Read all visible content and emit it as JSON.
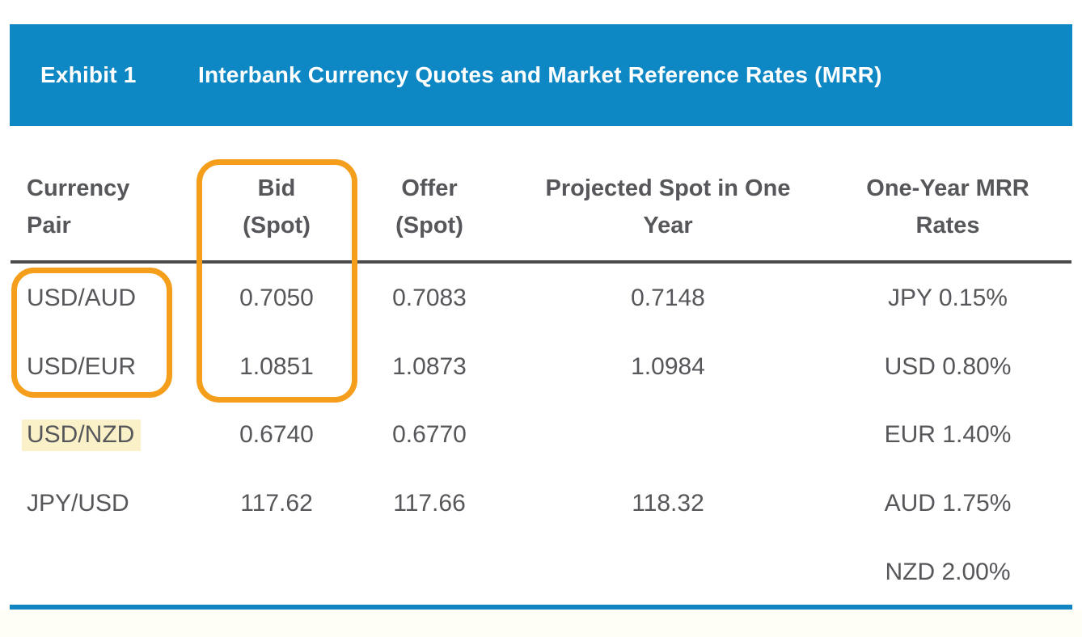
{
  "exhibit": {
    "label": "Exhibit 1",
    "title": "Interbank Currency Quotes and Market Reference Rates (MRR)"
  },
  "table": {
    "columns": [
      {
        "line1": "Currency",
        "line2": "Pair"
      },
      {
        "line1": "Bid",
        "line2": "(Spot)"
      },
      {
        "line1": "Offer",
        "line2": "(Spot)"
      },
      {
        "line1": "Projected Spot in One",
        "line2": "Year"
      },
      {
        "line1": "One-Year MRR",
        "line2": "Rates"
      }
    ],
    "rows": [
      {
        "pair": "USD/AUD",
        "bid": "0.7050",
        "offer": "0.7083",
        "projected": "0.7148",
        "mrr": "JPY 0.15%",
        "highlighted": false
      },
      {
        "pair": "USD/EUR",
        "bid": "1.0851",
        "offer": "1.0873",
        "projected": "1.0984",
        "mrr": "USD 0.80%",
        "highlighted": false
      },
      {
        "pair": "USD/NZD",
        "bid": "0.6740",
        "offer": "0.6770",
        "projected": "",
        "mrr": "EUR 1.40%",
        "highlighted": true
      },
      {
        "pair": "JPY/USD",
        "bid": "117.62",
        "offer": "117.66",
        "projected": "118.32",
        "mrr": "AUD 1.75%",
        "highlighted": false
      },
      {
        "pair": "",
        "bid": "",
        "offer": "",
        "projected": "",
        "mrr": "NZD 2.00%",
        "highlighted": false
      }
    ]
  },
  "annotations": {
    "bid_column_box": "orange rounded box around Bid (Spot) header and the USD/AUD and USD/EUR bid values",
    "currency_pair_box": "orange rounded box around USD/AUD and USD/EUR currency pairs",
    "highlighted_cell": "USD/NZD"
  },
  "colors": {
    "header_blue": "#0E87C5",
    "bottom_rule_blue": "#1184C2",
    "annotation_orange": "#F59E1B",
    "highlight_yellow": "#FAF1C8",
    "text_gray": "#56575A",
    "divider_gray": "#4B4C4E"
  }
}
